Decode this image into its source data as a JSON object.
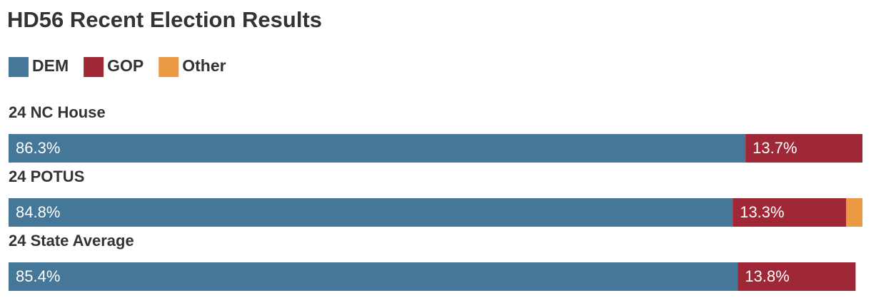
{
  "chart_data": {
    "type": "stacked-hbar",
    "title": "HD56 Recent Election Results",
    "categories": [
      "24 NC House",
      "24 POTUS",
      "24 State Average"
    ],
    "xlim": [
      0,
      100
    ],
    "series": [
      {
        "name": "DEM",
        "color": "#447798",
        "values": [
          86.3,
          84.8,
          85.4
        ],
        "value_labels": [
          "86.3%",
          "84.8%",
          "85.4%"
        ]
      },
      {
        "name": "GOP",
        "color": "#a02735",
        "values": [
          13.7,
          13.3,
          13.8
        ],
        "value_labels": [
          "13.7%",
          "13.3%",
          "13.8%"
        ]
      },
      {
        "name": "Other",
        "color": "#eb9a43",
        "values": [
          null,
          1.9,
          null
        ]
      }
    ]
  }
}
